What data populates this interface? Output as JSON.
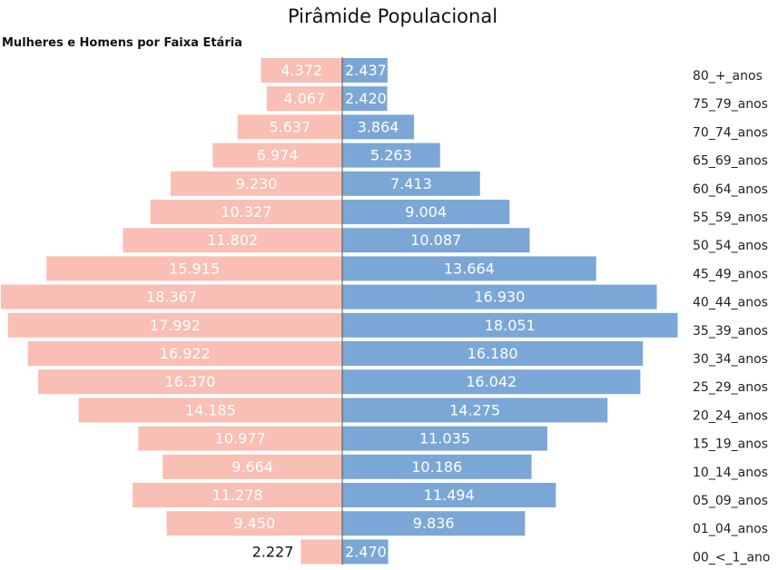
{
  "chart_data": {
    "type": "bar",
    "orientation": "horizontal-pyramid",
    "title": "Pirâmide Populacional",
    "subtitle": "Mulheres e Homens por Faixa Etária",
    "categories": [
      "80_+_anos",
      "75_79_anos",
      "70_74_anos",
      "65_69_anos",
      "60_64_anos",
      "55_59_anos",
      "50_54_anos",
      "45_49_anos",
      "40_44_anos",
      "35_39_anos",
      "30_34_anos",
      "25_29_anos",
      "20_24_anos",
      "15_19_anos",
      "10_14_anos",
      "05_09_anos",
      "01_04_anos",
      "00_<_1_ano"
    ],
    "series": [
      {
        "name": "Mulheres",
        "color": "#F9BFB4",
        "values": [
          4372,
          4067,
          5637,
          6974,
          9230,
          10327,
          11802,
          15915,
          18367,
          17992,
          16922,
          16370,
          14185,
          10977,
          9664,
          11278,
          9450,
          2227
        ],
        "labels": [
          "4.372",
          "4.067",
          "5.637",
          "6.974",
          "9.230",
          "10.327",
          "11.802",
          "15.915",
          "18.367",
          "17.992",
          "16.922",
          "16.370",
          "14.185",
          "10.977",
          "9.664",
          "11.278",
          "9.450",
          "2.227"
        ]
      },
      {
        "name": "Homens",
        "color": "#7BA7D7",
        "values": [
          2437,
          2420,
          3864,
          5263,
          7413,
          9004,
          10087,
          13664,
          16930,
          18051,
          16180,
          16042,
          14275,
          11035,
          10186,
          11494,
          9836,
          2470
        ],
        "labels": [
          "2.437",
          "2.420",
          "3.864",
          "5.263",
          "7.413",
          "9.004",
          "10.087",
          "13.664",
          "16.930",
          "18.051",
          "16.180",
          "16.042",
          "14.275",
          "11.035",
          "10.186",
          "11.494",
          "9.836",
          "2.470"
        ]
      }
    ],
    "xlim": [
      -18367,
      18367
    ]
  }
}
